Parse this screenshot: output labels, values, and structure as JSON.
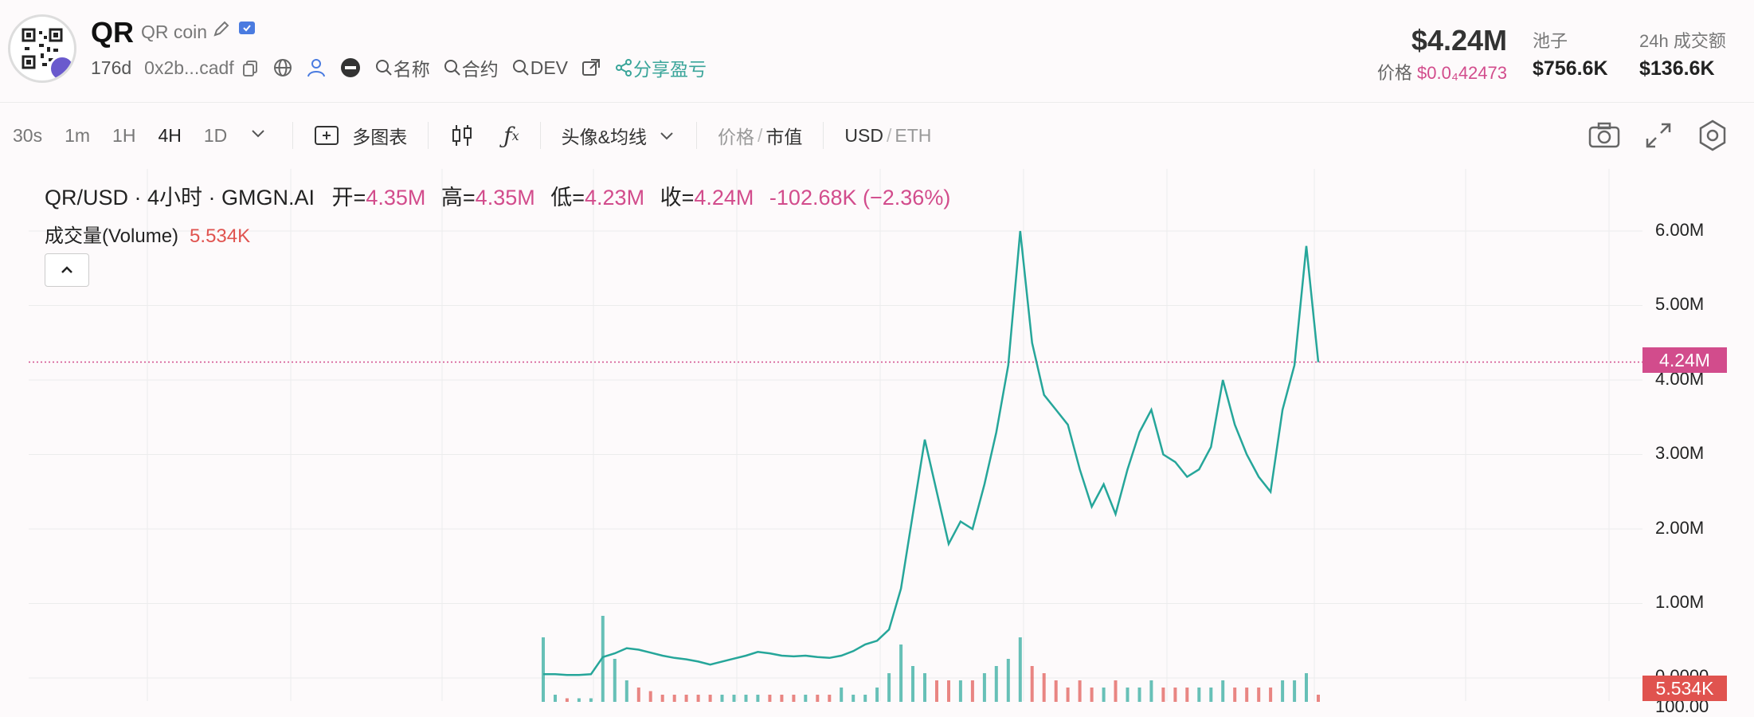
{
  "token": {
    "symbol": "QR",
    "name": "QR coin",
    "age": "176d",
    "address": "0x2b...cadf",
    "filters": [
      "名称",
      "合约",
      "DEV"
    ],
    "share_label": "分享盈亏"
  },
  "market": {
    "market_cap": "$4.24M",
    "price_label": "价格",
    "price_value": "$0.0₄42473",
    "pool_label": "池子",
    "pool_value": "$756.6K",
    "volume_label": "24h 成交额",
    "volume_value": "$136.6K"
  },
  "toolbar": {
    "timeframes": [
      "30s",
      "1m",
      "1H",
      "4H",
      "1D"
    ],
    "active_timeframe": "4H",
    "multi_chart": "多图表",
    "indicators": "头像&均线",
    "price_mode": "价格",
    "mcap_mode": "市值",
    "currency_usd": "USD",
    "currency_eth": "ETH"
  },
  "legend": {
    "pair": "QR/USD · 4小时 · GMGN.AI",
    "open_label": "开=",
    "open": "4.35M",
    "high_label": "高=",
    "high": "4.35M",
    "low_label": "低=",
    "low": "4.23M",
    "close_label": "收=",
    "close": "4.24M",
    "change": "-102.68K (−2.36%)",
    "volume_label": "成交量(Volume)",
    "volume_value": "5.534K"
  },
  "colors": {
    "up": "#26a69a",
    "down": "#e0534f",
    "accent": "#d24c8c"
  },
  "chart_data": {
    "type": "line",
    "yaxis_ticks": [
      "6.00M",
      "5.00M",
      "4.00M",
      "3.00M",
      "2.00M",
      "1.00M",
      "0.0000",
      "100.00"
    ],
    "ytick_values": [
      6.0,
      5.0,
      4.0,
      3.0,
      2.0,
      1.0,
      0.0
    ],
    "current_price_tag": "4.24M",
    "current_price": 4.24,
    "current_volume_tag": "5.534K",
    "ylim": [
      0,
      6.5
    ],
    "series": [
      {
        "values": [
          0.05,
          0.05,
          0.04,
          0.04,
          0.05,
          0.28,
          0.33,
          0.4,
          0.38,
          0.34,
          0.3,
          0.27,
          0.25,
          0.22,
          0.18,
          0.22,
          0.26,
          0.3,
          0.35,
          0.33,
          0.3,
          0.29,
          0.3,
          0.28,
          0.27,
          0.3,
          0.36,
          0.45,
          0.5,
          0.65,
          1.2,
          2.2,
          3.2,
          2.5,
          1.8,
          2.1,
          2.0,
          2.6,
          3.3,
          4.2,
          6.0,
          4.5,
          3.8,
          3.6,
          3.4,
          2.8,
          2.3,
          2.6,
          2.2,
          2.8,
          3.3,
          3.6,
          3.0,
          2.9,
          2.7,
          2.8,
          3.1,
          4.0,
          3.4,
          3.0,
          2.7,
          2.5,
          3.6,
          4.2,
          5.8,
          4.24
        ]
      }
    ],
    "volume": [
      0.9,
      0.1,
      0.05,
      0.05,
      0.05,
      1.2,
      0.6,
      0.3,
      0.2,
      0.15,
      0.1,
      0.1,
      0.1,
      0.1,
      0.1,
      0.1,
      0.1,
      0.1,
      0.1,
      0.1,
      0.1,
      0.1,
      0.1,
      0.1,
      0.1,
      0.2,
      0.1,
      0.1,
      0.2,
      0.4,
      0.8,
      0.5,
      0.4,
      0.3,
      0.3,
      0.3,
      0.3,
      0.4,
      0.5,
      0.6,
      0.9,
      0.5,
      0.4,
      0.3,
      0.2,
      0.3,
      0.2,
      0.2,
      0.3,
      0.2,
      0.2,
      0.3,
      0.2,
      0.2,
      0.2,
      0.2,
      0.2,
      0.3,
      0.2,
      0.2,
      0.2,
      0.2,
      0.3,
      0.3,
      0.4,
      0.1
    ]
  }
}
